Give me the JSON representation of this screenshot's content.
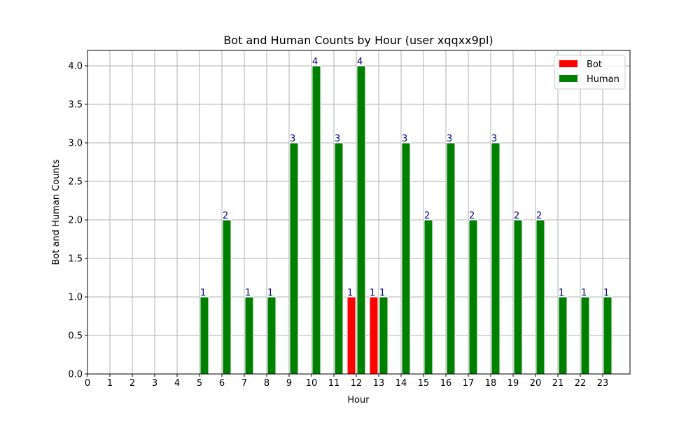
{
  "chart_data": {
    "type": "bar",
    "title": "Bot and Human Counts by Hour (user xqqxx9pl)",
    "xlabel": "Hour",
    "ylabel": "Bot and Human Counts",
    "categories": [
      "0",
      "1",
      "2",
      "3",
      "4",
      "5",
      "6",
      "7",
      "8",
      "9",
      "10",
      "11",
      "12",
      "13",
      "14",
      "15",
      "16",
      "17",
      "18",
      "19",
      "20",
      "21",
      "22",
      "23"
    ],
    "series": [
      {
        "name": "Bot",
        "color": "#ff0000",
        "values": [
          0,
          0,
          0,
          0,
          0,
          0,
          0,
          0,
          0,
          0,
          0,
          0,
          1,
          1,
          0,
          0,
          0,
          0,
          0,
          0,
          0,
          0,
          0,
          0
        ]
      },
      {
        "name": "Human",
        "color": "#008000",
        "values": [
          0,
          0,
          0,
          0,
          0,
          1,
          2,
          1,
          1,
          3,
          4,
          3,
          4,
          1,
          3,
          2,
          3,
          2,
          3,
          2,
          2,
          1,
          1,
          1
        ]
      }
    ],
    "ylim": [
      0,
      4.2
    ],
    "yticks": [
      "0.0",
      "0.5",
      "1.0",
      "1.5",
      "2.0",
      "2.5",
      "3.0",
      "3.5",
      "4.0"
    ],
    "grid": true,
    "legend": "top-right",
    "data_label_color": "#000080"
  }
}
